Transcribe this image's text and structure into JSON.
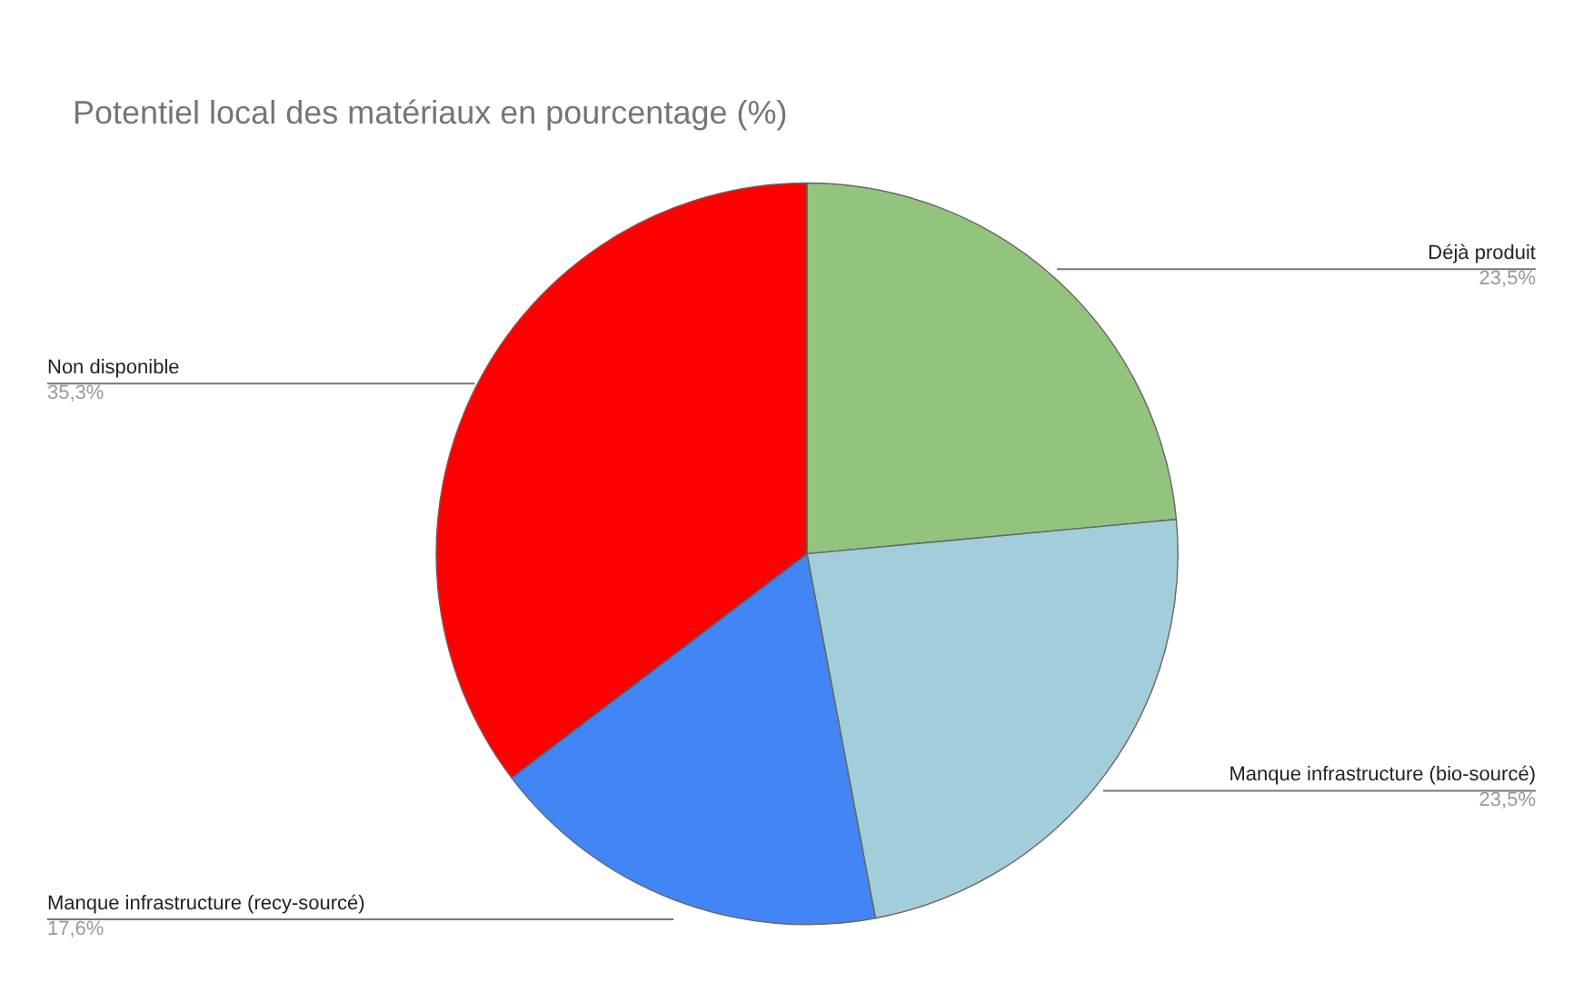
{
  "chart_data": {
    "type": "pie",
    "title": "Potentiel local des matériaux en pourcentage (%)",
    "categories": [
      "Déjà produit",
      "Manque infrastructure (bio-sourcé)",
      "Manque infrastructure (recy-sourcé)",
      "Non disponible"
    ],
    "values": [
      23.5,
      23.5,
      17.6,
      35.3
    ],
    "colors": [
      "#93c47d",
      "#a2cedb",
      "#4285f4",
      "#ff0000"
    ],
    "value_labels": [
      "23,5%",
      "23,5%",
      "17,6%",
      "35,3%"
    ],
    "legend": false
  }
}
